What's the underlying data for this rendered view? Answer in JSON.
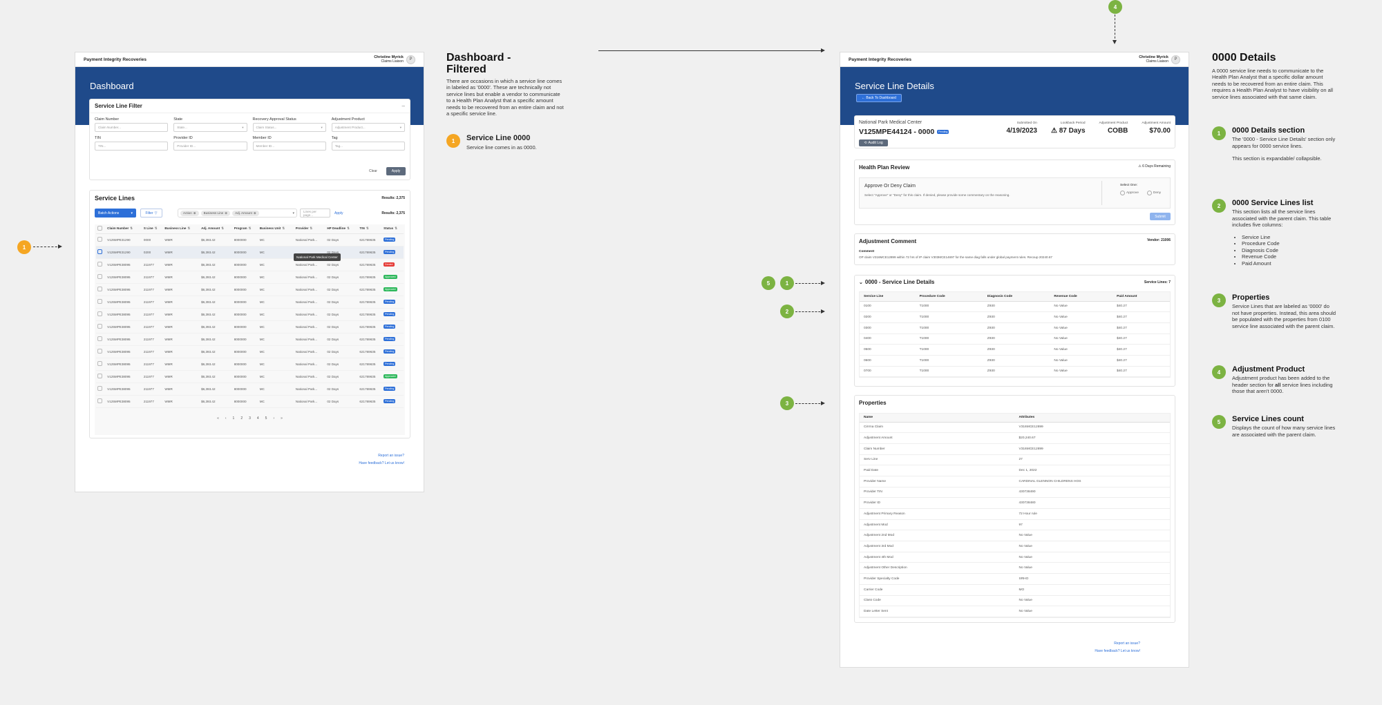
{
  "left_frame": {
    "brand": "Payment Integrity Recoveries",
    "user_name": "Christine Myrick",
    "user_role": "Claims Liaison",
    "avatar": "P",
    "page_title": "Dashboard",
    "filter": {
      "title": "Service Line Filter",
      "collapse": "–",
      "fields": [
        {
          "label": "Claim Number",
          "placeholder": "Claim Number..."
        },
        {
          "label": "State",
          "placeholder": "State..."
        },
        {
          "label": "Recovery Approval Status",
          "placeholder": "Claim Status..."
        },
        {
          "label": "Adjustment Product",
          "placeholder": "Adjustment Product..."
        },
        {
          "label": "TIN",
          "placeholder": "TIN..."
        },
        {
          "label": "Provider ID",
          "placeholder": "Provider ID..."
        },
        {
          "label": "Member ID",
          "placeholder": "Member ID..."
        },
        {
          "label": "Tag",
          "placeholder": "Tag..."
        }
      ],
      "clear": "Clear",
      "apply": "Apply"
    },
    "service_lines": {
      "title": "Service Lines",
      "results": "Results: 2,375",
      "batch_actions": "Batch Actions",
      "filter_btn": "Filter",
      "chips": [
        "Action",
        "Business Line",
        "Adj. Amount"
      ],
      "lines_placeholder": "Lines per page...",
      "apply": "Apply",
      "results2": "Results: 2,375",
      "columns": [
        "Claim Number",
        "S Line",
        "Business Line",
        "Adj. Amount",
        "Program",
        "Business Unit",
        "Provider",
        "HP Deadline",
        "TIN",
        "Status"
      ],
      "rows": [
        [
          "V125MPE31290",
          "0000",
          "WMR",
          "$6,393.42",
          "8000000",
          "MC",
          "National Park...",
          "02 Days",
          "621769635",
          "Pending"
        ],
        [
          "V125MPE31290",
          "0200",
          "WMR",
          "$6,393.42",
          "8000000",
          "MC",
          "National Park Medical Center",
          "02 Days",
          "621769635",
          "Pending"
        ],
        [
          "V125MPE38095",
          "211977",
          "WMR",
          "$6,393.42",
          "8000000",
          "MC",
          "National Park...",
          "02 Days",
          "621769635",
          "Denied"
        ],
        [
          "V125MPE38095",
          "211977",
          "WMR",
          "$6,393.42",
          "8000000",
          "MC",
          "National Park...",
          "02 Days",
          "621769635",
          "Approved"
        ],
        [
          "V125MPE38095",
          "211977",
          "WMR",
          "$6,393.42",
          "8000000",
          "MC",
          "National Park...",
          "02 Days",
          "621769635",
          "Approved"
        ],
        [
          "V125MPE38095",
          "211977",
          "WMR",
          "$6,393.42",
          "8000000",
          "MC",
          "National Park...",
          "02 Days",
          "621769635",
          "Pending"
        ],
        [
          "V125MPE38095",
          "211977",
          "WMR",
          "$6,393.42",
          "8000000",
          "MC",
          "National Park...",
          "02 Days",
          "621769635",
          "Pending"
        ],
        [
          "V125MPE38095",
          "211977",
          "WMR",
          "$6,393.42",
          "8000000",
          "MC",
          "National Park...",
          "02 Days",
          "621769635",
          "Pending"
        ],
        [
          "V125MPE38095",
          "211977",
          "WMR",
          "$6,393.42",
          "8000000",
          "MC",
          "National Park...",
          "02 Days",
          "621769635",
          "Pending"
        ],
        [
          "V125MPE38095",
          "211977",
          "WMR",
          "$6,393.42",
          "8000000",
          "MC",
          "National Park...",
          "02 Days",
          "621769635",
          "Pending"
        ],
        [
          "V125MPE38095",
          "211977",
          "WMR",
          "$6,393.42",
          "8000000",
          "MC",
          "National Park...",
          "02 Days",
          "621769635",
          "Pending"
        ],
        [
          "V125MPE38095",
          "211977",
          "WMR",
          "$6,393.42",
          "8000000",
          "MC",
          "National Park...",
          "02 Days",
          "621769635",
          "Approved"
        ],
        [
          "V125MPE38095",
          "211977",
          "WMR",
          "$6,393.42",
          "8000000",
          "MC",
          "National Park...",
          "02 Days",
          "621769635",
          "Pending"
        ],
        [
          "V125MPE38095",
          "211977",
          "WMR",
          "$6,393.42",
          "8000000",
          "MC",
          "National Park...",
          "02 Days",
          "621769635",
          "Pending"
        ]
      ],
      "pager": [
        "«",
        "‹",
        "1",
        "2",
        "3",
        "4",
        "5",
        "›",
        "»"
      ]
    },
    "report_issue": "Report an issue?",
    "feedback": "Have feedback? Let us know!"
  },
  "note1": {
    "title": "Dashboard -\nFiltered",
    "body": "There are occasions in which a service line comes in labeled as '0000'. These are technically not service lines but enable a vendor to communicate to a Health Plan Analyst that a specific amount needs to be recovered from an entire claim and not a specific service line.",
    "item_num": "1",
    "item_title": "Service Line 0000",
    "item_body": "Service line comes in as 0000."
  },
  "right_frame": {
    "brand": "Payment Integrity Recoveries",
    "user_name": "Christine Myrick",
    "user_role": "Claims Liaison",
    "avatar": "P",
    "page_title": "Service Line Details",
    "back": "← Back To Dashboard",
    "provider": "National Park Medical Center",
    "claim": "V125MPE44124 - 0000",
    "claim_status": "Pending",
    "audit": "Audit Log",
    "header_stats": [
      {
        "label": "Submitted On",
        "value": "4/19/2023"
      },
      {
        "label": "Lookback Period",
        "value": "⚠ 87 Days"
      },
      {
        "label": "Adjustment Product",
        "value": "COBB"
      },
      {
        "label": "Adjustment Amount",
        "value": "$70.00"
      }
    ],
    "review": {
      "title": "Health Plan Review",
      "remaining": "⚠ 6 Days Remaining",
      "sub": "Approve Or Deny Claim",
      "desc": "Select \"Approve\" or \"Deny\" for this claim. If denied, please provide some commentary on the reasoning.",
      "select_one": "Select One:",
      "approve": "Approve",
      "deny": "Deny",
      "submit": "Submit"
    },
    "adjustment": {
      "title": "Adjustment Comment",
      "vendor": "Vendor: 21006",
      "comment_label": "Comment",
      "comment": "OP claim V316MCE12899 within 72 hrs of IP claim V303MCE14697 for the same diag falls under global payment rules. Recoup 20240.67"
    },
    "details": {
      "title": "0000 - Service Line Details",
      "count": "Service Lines: 7",
      "columns": [
        "Service Line",
        "Procedure Code",
        "Diagnosis Code",
        "Revenue Code",
        "Paid Amount"
      ],
      "rows": [
        [
          "0100",
          "T1000",
          "Z930",
          "No Value",
          "$40.27"
        ],
        [
          "0200",
          "T1000",
          "Z930",
          "No Value",
          "$40.27"
        ],
        [
          "0300",
          "T1000",
          "Z930",
          "No Value",
          "$40.27"
        ],
        [
          "0400",
          "T1000",
          "Z930",
          "No Value",
          "$40.27"
        ],
        [
          "0500",
          "T1000",
          "Z930",
          "No Value",
          "$40.27"
        ],
        [
          "0600",
          "T1000",
          "Z930",
          "No Value",
          "$40.27"
        ],
        [
          "0700",
          "T1000",
          "Z930",
          "No Value",
          "$40.27"
        ]
      ]
    },
    "properties": {
      "title": "Properties",
      "columns": [
        "Name",
        "Attributes"
      ],
      "rows": [
        [
          "Cirrma Claim",
          "V316MCE12899"
        ],
        [
          "Adjustment Amount",
          "$20,240.67"
        ],
        [
          "Claim Number",
          "V316MCE12899"
        ],
        [
          "Serv Line",
          "27"
        ],
        [
          "Paid Date",
          "Dec 1, 2022"
        ],
        [
          "Provider Name",
          "CARDINAL GLENNON CHILDRENS HOS"
        ],
        [
          "Provider TIN",
          "430738490"
        ],
        [
          "Provider ID",
          "430738480"
        ],
        [
          "Adjustment Primary Reason",
          "72 Hour rule"
        ],
        [
          "Adjustment Mod",
          "97"
        ],
        [
          "Adjustment 2nd Mod",
          "No Value"
        ],
        [
          "Adjustment 3rd Mod",
          "No Value"
        ],
        [
          "Adjustment 4th Mod",
          "No Value"
        ],
        [
          "Adjustment Other Description",
          "No Value"
        ],
        [
          "Provider Specialty Code",
          "SRHO"
        ],
        [
          "Carrier Code",
          "MO"
        ],
        [
          "Class Code",
          "No Value"
        ],
        [
          "Date Letter Sent",
          "No Value"
        ]
      ]
    },
    "report_issue": "Report an issue?",
    "feedback": "Have feedback? Let us know!"
  },
  "note2": {
    "title": "0000 Details",
    "body": "A 0000 service line needs to communicate to the Health Plan Analyst that a specific dollar amount needs to be recovered from an entire claim. This requires a Health Plan Analyst to have visibility on all service lines associated with that same claim.",
    "items": [
      {
        "num": "1",
        "title": "0000 Details section",
        "body": "The '0000 - Service Line Details' section only appears for 0000 service lines.",
        "body2": "This section is expandable/ collapsible."
      },
      {
        "num": "2",
        "title": "0000 Service Lines list",
        "body": "This section lists all the service lines associated with the parent claim. This table includes five columns:",
        "bullets": [
          "Service Line",
          "Procedure Code",
          "Diagnosis Code",
          "Revenue Code",
          "Paid Amount"
        ]
      },
      {
        "num": "3",
        "title": "Properties",
        "body": "Service Lines that are labeled as '0000' do not have properties. Instead, this area should be populated with the properties from 0100 service line associated with the parent claim."
      },
      {
        "num": "4",
        "title": "Adjustment Product",
        "body_a": "Adjustment product has been added to the header section for ",
        "body_b": "all",
        "body_c": " service lines including those that aren't 0000."
      },
      {
        "num": "5",
        "title": "Service Lines count",
        "body": "Displays the count of how many service lines are associated with the parent claim."
      }
    ]
  },
  "markers": {
    "m1": "1",
    "r1": "1",
    "r2": "2",
    "r3": "3",
    "r4": "4",
    "r5": "5"
  },
  "colors": {
    "brand_blue": "#1f4a8a",
    "accent": "#2d6fd8",
    "pending": "#2d6fd8",
    "denied": "#e53935",
    "approved": "#2eb85c",
    "orange": "#f5a623",
    "green": "#7cb342"
  }
}
